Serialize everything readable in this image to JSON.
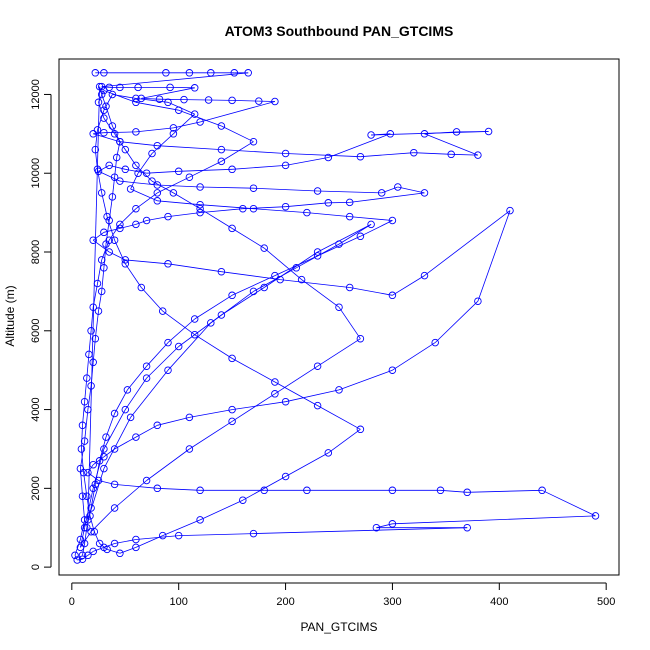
{
  "chart_data": {
    "type": "line",
    "title": "ATOM3 Southbound PAN_GTCIMS",
    "xlabel": "PAN_GTCIMS",
    "ylabel": "Altitude (m)",
    "xlim": [
      -12,
      512
    ],
    "ylim": [
      -200,
      12900
    ],
    "xticks": [
      0,
      100,
      200,
      300,
      400,
      500
    ],
    "yticks": [
      0,
      2000,
      4000,
      6000,
      8000,
      10000,
      12000
    ],
    "grid": false,
    "legend": "none",
    "line_color": "#0000ff",
    "marker": "open-circle",
    "series": [
      {
        "values": [
          [
            22,
            12550
          ],
          [
            30,
            12550
          ],
          [
            88,
            12550
          ],
          [
            110,
            12550
          ],
          [
            130,
            12550
          ],
          [
            152,
            12550
          ],
          [
            165,
            12550
          ],
          [
            28,
            12200
          ],
          [
            35,
            12180
          ],
          [
            45,
            12180
          ],
          [
            62,
            12180
          ],
          [
            92,
            12180
          ],
          [
            115,
            12170
          ],
          [
            65,
            11900
          ],
          [
            82,
            11880
          ],
          [
            105,
            11870
          ],
          [
            128,
            11860
          ],
          [
            150,
            11850
          ],
          [
            175,
            11830
          ],
          [
            190,
            11820
          ],
          [
            120,
            11300
          ],
          [
            95,
            11150
          ],
          [
            60,
            11050
          ],
          [
            30,
            11030
          ],
          [
            20,
            11000
          ],
          [
            45,
            10800
          ],
          [
            80,
            10700
          ],
          [
            140,
            10600
          ],
          [
            200,
            10500
          ],
          [
            270,
            10420
          ],
          [
            320,
            10520
          ],
          [
            355,
            10480
          ],
          [
            380,
            10460
          ],
          [
            330,
            11000
          ],
          [
            360,
            11050
          ],
          [
            390,
            11060
          ],
          [
            280,
            10970
          ],
          [
            298,
            11000
          ],
          [
            240,
            10400
          ],
          [
            200,
            10200
          ],
          [
            150,
            10100
          ],
          [
            100,
            10050
          ],
          [
            70,
            10000
          ],
          [
            50,
            10100
          ],
          [
            35,
            10200
          ],
          [
            25,
            10050
          ],
          [
            45,
            9800
          ],
          [
            80,
            9700
          ],
          [
            120,
            9650
          ],
          [
            170,
            9620
          ],
          [
            230,
            9550
          ],
          [
            290,
            9500
          ],
          [
            305,
            9650
          ],
          [
            330,
            9500
          ],
          [
            260,
            9260
          ],
          [
            240,
            9250
          ],
          [
            200,
            9150
          ],
          [
            160,
            9100
          ],
          [
            120,
            9000
          ],
          [
            90,
            8900
          ],
          [
            70,
            8800
          ],
          [
            60,
            8700
          ],
          [
            45,
            8600
          ],
          [
            30,
            8500
          ],
          [
            20,
            8300
          ],
          [
            35,
            8000
          ],
          [
            50,
            7800
          ],
          [
            90,
            7700
          ],
          [
            140,
            7500
          ],
          [
            195,
            7300
          ],
          [
            260,
            7100
          ],
          [
            300,
            6900
          ],
          [
            330,
            7400
          ],
          [
            410,
            9050
          ],
          [
            380,
            6750
          ],
          [
            340,
            5700
          ],
          [
            300,
            5000
          ],
          [
            250,
            4500
          ],
          [
            200,
            4200
          ],
          [
            150,
            4000
          ],
          [
            110,
            3800
          ],
          [
            80,
            3600
          ],
          [
            60,
            3300
          ],
          [
            40,
            3000
          ],
          [
            30,
            2800
          ],
          [
            20,
            2600
          ],
          [
            15,
            2400
          ],
          [
            25,
            2200
          ],
          [
            40,
            2100
          ],
          [
            80,
            2000
          ],
          [
            120,
            1950
          ],
          [
            180,
            1950
          ],
          [
            220,
            1950
          ],
          [
            300,
            1950
          ],
          [
            345,
            1950
          ],
          [
            370,
            1900
          ],
          [
            440,
            1950
          ],
          [
            490,
            1300
          ],
          [
            300,
            1100
          ],
          [
            285,
            1000
          ],
          [
            370,
            1000
          ],
          [
            170,
            850
          ],
          [
            100,
            800
          ],
          [
            60,
            700
          ],
          [
            40,
            600
          ],
          [
            30,
            500
          ],
          [
            20,
            400
          ],
          [
            15,
            300
          ],
          [
            10,
            200
          ],
          [
            5,
            180
          ],
          [
            3,
            300
          ],
          [
            8,
            700
          ],
          [
            12,
            1200
          ],
          [
            10,
            1800
          ],
          [
            8,
            2500
          ],
          [
            12,
            3200
          ],
          [
            15,
            4000
          ],
          [
            18,
            4600
          ],
          [
            20,
            5200
          ],
          [
            22,
            5800
          ],
          [
            25,
            6500
          ],
          [
            28,
            7000
          ],
          [
            30,
            7600
          ],
          [
            32,
            8200
          ],
          [
            35,
            8800
          ],
          [
            38,
            9400
          ],
          [
            40,
            9900
          ],
          [
            42,
            10400
          ],
          [
            45,
            10800
          ],
          [
            38,
            11200
          ],
          [
            32,
            11700
          ],
          [
            28,
            12000
          ],
          [
            26,
            12200
          ],
          [
            15,
            1200
          ],
          [
            30,
            2500
          ],
          [
            55,
            3800
          ],
          [
            90,
            5000
          ],
          [
            130,
            6200
          ],
          [
            170,
            7000
          ],
          [
            210,
            7600
          ],
          [
            250,
            8200
          ],
          [
            280,
            8700
          ],
          [
            230,
            8000
          ],
          [
            180,
            7100
          ],
          [
            140,
            6400
          ],
          [
            100,
            5600
          ],
          [
            70,
            4800
          ],
          [
            50,
            4000
          ],
          [
            30,
            3000
          ],
          [
            20,
            2000
          ],
          [
            12,
            1000
          ],
          [
            8,
            500
          ],
          [
            18,
            900
          ],
          [
            40,
            1500
          ],
          [
            70,
            2200
          ],
          [
            110,
            3000
          ],
          [
            150,
            3700
          ],
          [
            190,
            4400
          ],
          [
            230,
            5100
          ],
          [
            270,
            5800
          ],
          [
            250,
            6600
          ],
          [
            215,
            7300
          ],
          [
            180,
            8100
          ],
          [
            150,
            8600
          ],
          [
            120,
            9100
          ],
          [
            95,
            9500
          ],
          [
            75,
            9800
          ],
          [
            60,
            10200
          ],
          [
            50,
            10600
          ],
          [
            40,
            11000
          ],
          [
            30,
            11400
          ],
          [
            25,
            11800
          ],
          [
            30,
            12100
          ],
          [
            60,
            11800
          ],
          [
            100,
            11600
          ],
          [
            140,
            11200
          ],
          [
            170,
            10800
          ],
          [
            140,
            10300
          ],
          [
            110,
            9900
          ],
          [
            80,
            9500
          ],
          [
            60,
            9100
          ],
          [
            45,
            8700
          ],
          [
            35,
            8300
          ],
          [
            28,
            7800
          ],
          [
            24,
            7200
          ],
          [
            20,
            6600
          ],
          [
            18,
            6000
          ],
          [
            16,
            5400
          ],
          [
            14,
            4800
          ],
          [
            12,
            4200
          ],
          [
            10,
            3600
          ],
          [
            9,
            3000
          ],
          [
            11,
            2400
          ],
          [
            14,
            1800
          ],
          [
            17,
            1300
          ],
          [
            21,
            900
          ],
          [
            26,
            600
          ],
          [
            33,
            450
          ],
          [
            45,
            350
          ],
          [
            60,
            500
          ],
          [
            85,
            800
          ],
          [
            120,
            1200
          ],
          [
            160,
            1700
          ],
          [
            200,
            2300
          ],
          [
            240,
            2900
          ],
          [
            270,
            3500
          ],
          [
            230,
            4100
          ],
          [
            190,
            4700
          ],
          [
            150,
            5300
          ],
          [
            115,
            5900
          ],
          [
            85,
            6500
          ],
          [
            65,
            7100
          ],
          [
            50,
            7700
          ],
          [
            40,
            8300
          ],
          [
            33,
            8900
          ],
          [
            28,
            9500
          ],
          [
            24,
            10100
          ],
          [
            22,
            10600
          ],
          [
            24,
            11100
          ],
          [
            30,
            11600
          ],
          [
            38,
            12000
          ],
          [
            60,
            11900
          ],
          [
            90,
            11800
          ],
          [
            115,
            11500
          ],
          [
            95,
            11000
          ],
          [
            75,
            10500
          ],
          [
            62,
            10000
          ],
          [
            55,
            9600
          ],
          [
            80,
            9300
          ],
          [
            120,
            9200
          ],
          [
            170,
            9100
          ],
          [
            220,
            9000
          ],
          [
            260,
            8900
          ],
          [
            300,
            8800
          ],
          [
            270,
            8400
          ],
          [
            230,
            7900
          ],
          [
            190,
            7400
          ],
          [
            150,
            6900
          ],
          [
            115,
            6300
          ],
          [
            90,
            5700
          ],
          [
            70,
            5100
          ],
          [
            52,
            4500
          ],
          [
            40,
            3900
          ],
          [
            32,
            3300
          ],
          [
            26,
            2700
          ],
          [
            22,
            2100
          ],
          [
            18,
            1500
          ],
          [
            14,
            1000
          ],
          [
            12,
            600
          ],
          [
            10,
            300
          ]
        ]
      }
    ]
  }
}
